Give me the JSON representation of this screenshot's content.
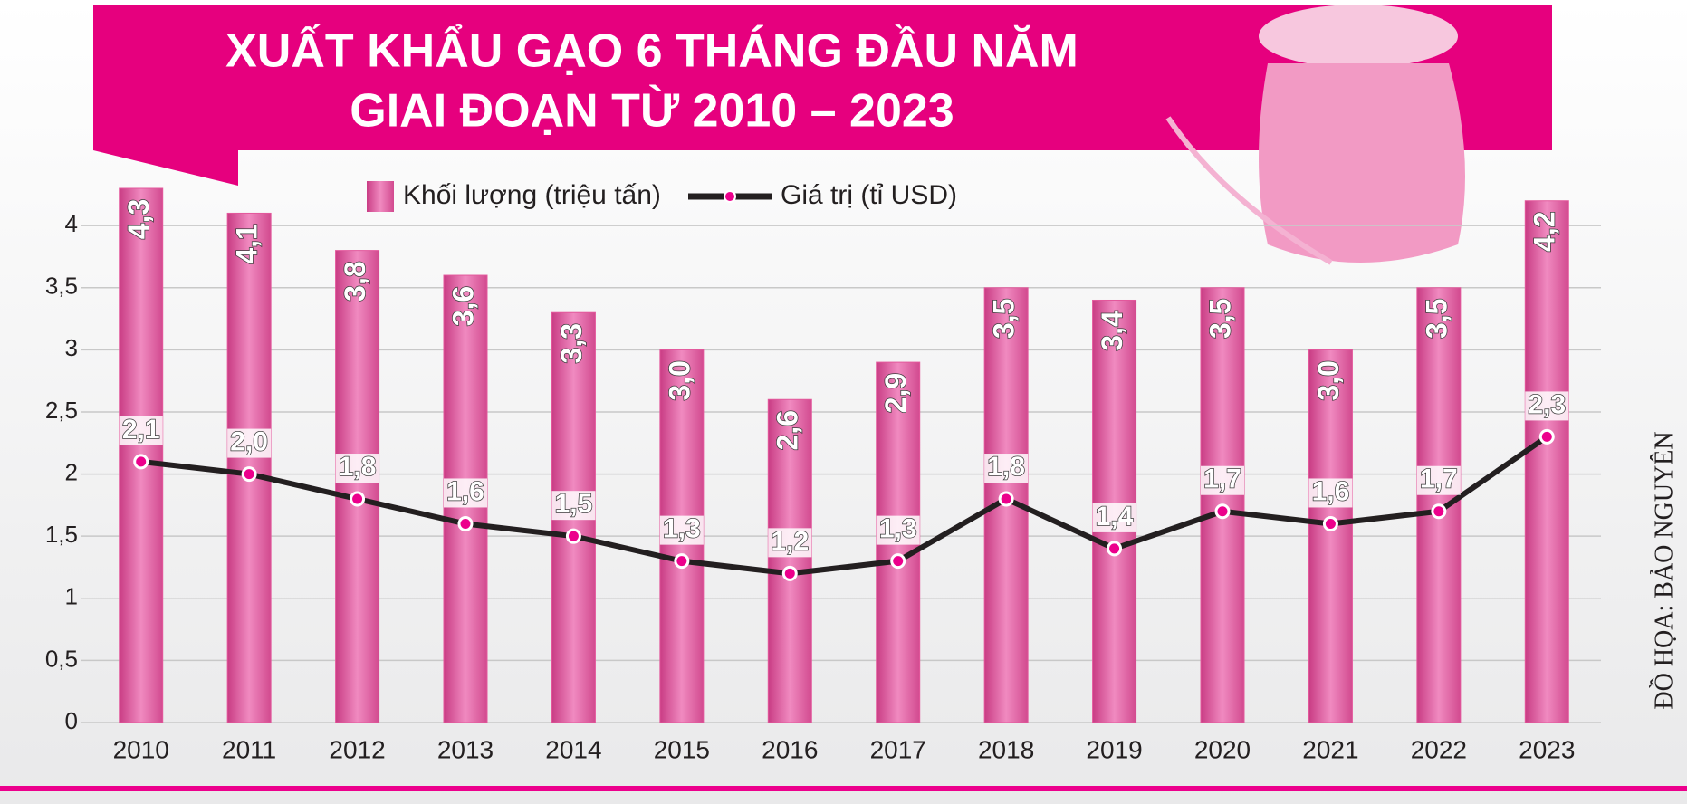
{
  "chart_data": {
    "type": "bar",
    "title": "XUẤT KHẨU GẠO 6 THÁNG ĐẦU NĂM",
    "subtitle": "GIAI ĐOẠN TỪ 2010 – 2023",
    "credit": "ĐỒ HỌA: BẢO NGUYÊN",
    "categories": [
      "2010",
      "2011",
      "2012",
      "2013",
      "2014",
      "2015",
      "2016",
      "2017",
      "2018",
      "2019",
      "2020",
      "2021",
      "2022",
      "2023"
    ],
    "series": [
      {
        "name": "Khối lượng (triệu tấn)",
        "type": "bar",
        "color": "#e3589c",
        "values": [
          4.3,
          4.1,
          3.8,
          3.6,
          3.3,
          3.0,
          2.6,
          2.9,
          3.5,
          3.4,
          3.5,
          3.0,
          3.5,
          4.2
        ],
        "value_labels": [
          "4,3",
          "4,1",
          "3,8",
          "3,6",
          "3,3",
          "3,0",
          "2,6",
          "2,9",
          "3,5",
          "3,4",
          "3,5",
          "3,0",
          "3,5",
          "4,2"
        ]
      },
      {
        "name": "Giá trị (tỉ USD)",
        "type": "line",
        "color": "#231f20",
        "marker_color": "#ec008c",
        "values": [
          2.1,
          2.0,
          1.8,
          1.6,
          1.5,
          1.3,
          1.2,
          1.3,
          1.8,
          1.4,
          1.7,
          1.6,
          1.7,
          2.3
        ],
        "value_labels": [
          "2,1",
          "2,0",
          "1,8",
          "1,6",
          "1,5",
          "1,3",
          "1,2",
          "1,3",
          "1,8",
          "1,4",
          "1,7",
          "1,6",
          "1,7",
          "2,3"
        ]
      }
    ],
    "ylim": [
      0,
      4.3
    ],
    "yticks": [
      0,
      {
        "value": 0.5,
        "label": "0,5"
      },
      1,
      {
        "value": 1.5,
        "label": "1,5"
      },
      2,
      {
        "value": 2.5,
        "label": "2,5"
      },
      3,
      {
        "value": 3.5,
        "label": "3,5"
      },
      4
    ],
    "grid": true
  }
}
